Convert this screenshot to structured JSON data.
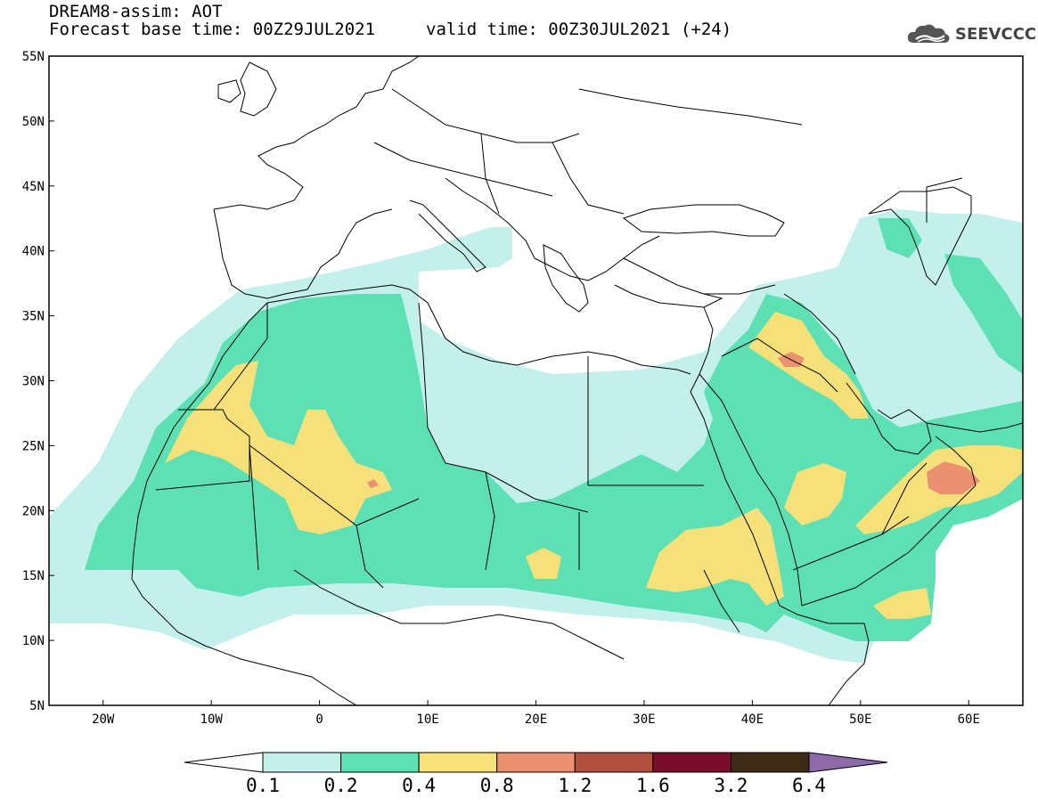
{
  "title": {
    "line1": "DREAM8-assim: AOT",
    "base": "Forecast base time: 00Z29JUL2021",
    "valid": "valid time: 00Z30JUL2021 (+24)"
  },
  "logo": {
    "text": "SEEVCCC",
    "icon": "cloud-icon"
  },
  "map": {
    "lon_range": [
      -25,
      65
    ],
    "lat_range": [
      5,
      55
    ],
    "lat_labels": [
      "55N",
      "50N",
      "45N",
      "40N",
      "35N",
      "30N",
      "25N",
      "20N",
      "15N",
      "10N",
      "5N"
    ],
    "lat_values": [
      55,
      50,
      45,
      40,
      35,
      30,
      25,
      20,
      15,
      10,
      5
    ],
    "lon_labels": [
      "20W",
      "10W",
      "0",
      "10E",
      "20E",
      "30E",
      "40E",
      "50E",
      "60E"
    ],
    "lon_values": [
      -20,
      -10,
      0,
      10,
      20,
      30,
      40,
      50,
      60
    ],
    "field": "Aerosol Optical Thickness"
  },
  "colorbar": {
    "labels": [
      "0.1",
      "0.2",
      "0.4",
      "0.8",
      "1.2",
      "1.6",
      "3.2",
      "6.4"
    ],
    "colors": [
      "#ffffff",
      "#c3f0eb",
      "#5ee0b5",
      "#f5e07a",
      "#eb9070",
      "#b0503f",
      "#7a0e2a",
      "#3d2a14",
      "#8f6aa8"
    ]
  }
}
